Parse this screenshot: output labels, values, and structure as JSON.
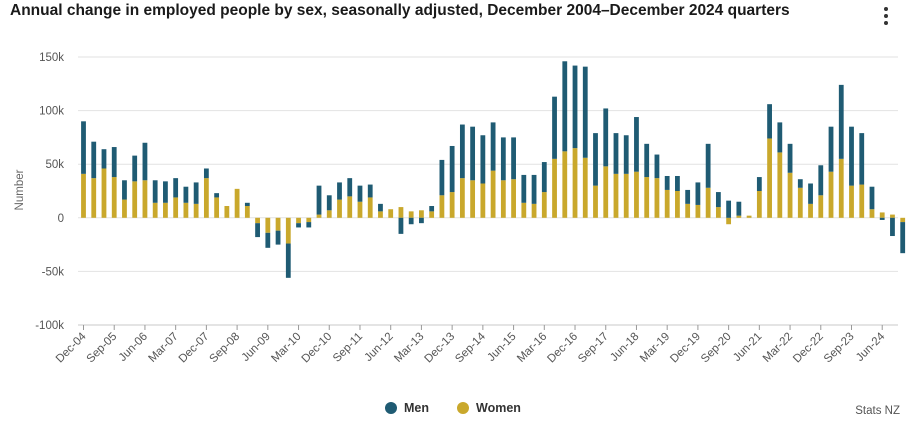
{
  "title": "Annual change in employed people by sex, seasonally adjusted, December 2004–December 2024 quarters",
  "credit": "Stats NZ",
  "colors": {
    "men": "#1f5b73",
    "women": "#c9a82c"
  },
  "legend": [
    {
      "label": "Men",
      "color": "#1f5b73"
    },
    {
      "label": "Women",
      "color": "#c9a82c"
    }
  ],
  "chart_data": {
    "type": "bar",
    "stacked": true,
    "title": "Annual change in employed people by sex, seasonally adjusted, December 2004–December 2024 quarters",
    "ylabel": "Number",
    "ylim": [
      -100000,
      150000
    ],
    "yticks": [
      {
        "value": 150000,
        "label": "150k"
      },
      {
        "value": 100000,
        "label": "100k"
      },
      {
        "value": 50000,
        "label": "50k"
      },
      {
        "value": 0,
        "label": "0"
      },
      {
        "value": -50000,
        "label": "-50k"
      },
      {
        "value": -100000,
        "label": "-100k"
      }
    ],
    "grid": true,
    "legend_position": "bottom",
    "xticks": [
      {
        "index": 0,
        "label": "Dec-04"
      },
      {
        "index": 3,
        "label": "Sep-05"
      },
      {
        "index": 6,
        "label": "Jun-06"
      },
      {
        "index": 9,
        "label": "Mar-07"
      },
      {
        "index": 12,
        "label": "Dec-07"
      },
      {
        "index": 15,
        "label": "Sep-08"
      },
      {
        "index": 18,
        "label": "Jun-09"
      },
      {
        "index": 21,
        "label": "Mar-10"
      },
      {
        "index": 24,
        "label": "Dec-10"
      },
      {
        "index": 27,
        "label": "Sep-11"
      },
      {
        "index": 30,
        "label": "Jun-12"
      },
      {
        "index": 33,
        "label": "Mar-13"
      },
      {
        "index": 36,
        "label": "Dec-13"
      },
      {
        "index": 39,
        "label": "Sep-14"
      },
      {
        "index": 42,
        "label": "Jun-15"
      },
      {
        "index": 45,
        "label": "Mar-16"
      },
      {
        "index": 48,
        "label": "Dec-16"
      },
      {
        "index": 51,
        "label": "Sep-17"
      },
      {
        "index": 54,
        "label": "Jun-18"
      },
      {
        "index": 57,
        "label": "Mar-19"
      },
      {
        "index": 60,
        "label": "Dec-19"
      },
      {
        "index": 63,
        "label": "Sep-20"
      },
      {
        "index": 66,
        "label": "Jun-21"
      },
      {
        "index": 69,
        "label": "Mar-22"
      },
      {
        "index": 72,
        "label": "Dec-22"
      },
      {
        "index": 75,
        "label": "Sep-23"
      },
      {
        "index": 78,
        "label": "Jun-24"
      }
    ],
    "series": [
      {
        "name": "Women",
        "values": [
          41000,
          37000,
          46000,
          38000,
          17000,
          34000,
          35000,
          14000,
          14000,
          19000,
          14000,
          13000,
          37000,
          19000,
          11000,
          27000,
          11000,
          -5000,
          -14000,
          -12000,
          -24000,
          -5000,
          -4000,
          3000,
          7000,
          17000,
          20000,
          15000,
          19000,
          6000,
          8000,
          10000,
          6000,
          7000,
          6000,
          21000,
          24000,
          37000,
          35000,
          32000,
          44000,
          35000,
          36000,
          14000,
          13000,
          24000,
          55000,
          62000,
          65000,
          56000,
          30000,
          48000,
          41000,
          41000,
          43000,
          38000,
          37000,
          26000,
          25000,
          13000,
          12000,
          28000,
          10000,
          -6000,
          2000,
          2000,
          25000,
          74000,
          61000,
          42000,
          28000,
          13000,
          21000,
          43000,
          55000,
          30000,
          31000,
          8000,
          5000,
          3000,
          -4000
        ]
      },
      {
        "name": "Men",
        "values": [
          49000,
          34000,
          18000,
          28000,
          18000,
          24000,
          35000,
          21000,
          20000,
          18000,
          15000,
          20000,
          9000,
          4000,
          0,
          0,
          3000,
          -13000,
          -14000,
          -13000,
          -32000,
          -4000,
          -5000,
          27000,
          14000,
          16000,
          17000,
          15000,
          12000,
          7000,
          0,
          -15000,
          -6000,
          -5000,
          5000,
          33000,
          43000,
          50000,
          50000,
          45000,
          45000,
          40000,
          39000,
          26000,
          27000,
          28000,
          58000,
          84000,
          77000,
          85000,
          49000,
          54000,
          38000,
          36000,
          51000,
          31000,
          22000,
          13000,
          14000,
          13000,
          21000,
          41000,
          14000,
          16000,
          13000,
          0,
          13000,
          32000,
          28000,
          27000,
          8000,
          19000,
          28000,
          42000,
          69000,
          55000,
          48000,
          21000,
          -2000,
          -17000,
          -29000
        ]
      }
    ]
  }
}
